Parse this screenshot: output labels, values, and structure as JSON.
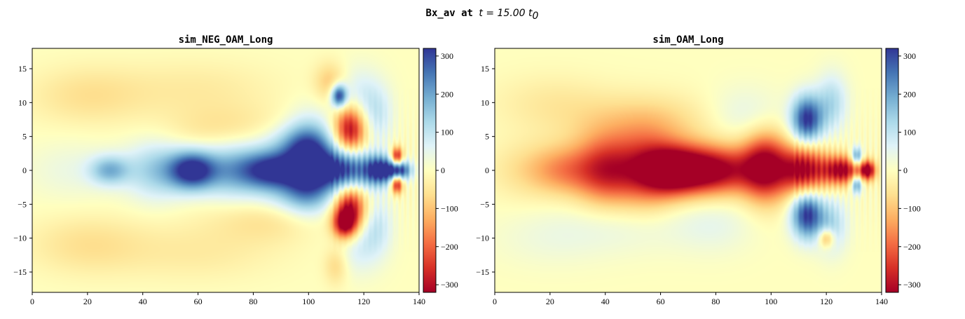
{
  "figure": {
    "title_mono": "Bx_av at ",
    "title_math": "t = 15.00 t",
    "title_sub": "0"
  },
  "chart_data": [
    {
      "type": "heatmap",
      "title": "sim_NEG_OAM_Long",
      "xlim": [
        0,
        140
      ],
      "ylim": [
        -18,
        18
      ],
      "xticks": [
        0,
        20,
        40,
        60,
        80,
        100,
        120,
        140
      ],
      "yticks": [
        -15,
        -10,
        -5,
        0,
        5,
        10,
        15
      ],
      "colormap": "RdYlBu",
      "clim": [
        -320,
        320
      ],
      "colorbar_ticks": [
        300,
        200,
        100,
        0,
        -100,
        -200,
        -300
      ],
      "features": [
        {
          "x": 15,
          "y": 0,
          "sx": 12,
          "sy": 3,
          "value": 40
        },
        {
          "x": 28,
          "y": 0,
          "sx": 5,
          "sy": 1.5,
          "value": 160
        },
        {
          "x": 45,
          "y": 0,
          "sx": 8,
          "sy": 3,
          "value": 140
        },
        {
          "x": 58,
          "y": 0,
          "sx": 6,
          "sy": 2,
          "value": 320
        },
        {
          "x": 72,
          "y": 0,
          "sx": 8,
          "sy": 3,
          "value": 160
        },
        {
          "x": 87,
          "y": 0,
          "sx": 8,
          "sy": 2,
          "value": 320
        },
        {
          "x": 100,
          "y": 1,
          "sx": 6,
          "sy": 4,
          "value": 320
        },
        {
          "x": 113,
          "y": 0,
          "sx": 7,
          "sy": 2.2,
          "value": 320
        },
        {
          "x": 126,
          "y": 0,
          "sx": 4,
          "sy": 1.5,
          "value": 320
        },
        {
          "x": 133,
          "y": 0,
          "sx": 3,
          "sy": 1,
          "value": 300
        },
        {
          "x": 115,
          "y": 6,
          "sx": 4,
          "sy": 2.5,
          "value": -320
        },
        {
          "x": 115,
          "y": -5.5,
          "sx": 4,
          "sy": 2.5,
          "value": -320
        },
        {
          "x": 111,
          "y": 11,
          "sx": 2,
          "sy": 1.2,
          "value": 320
        },
        {
          "x": 113,
          "y": -8,
          "sx": 3,
          "sy": 1.5,
          "value": -260
        },
        {
          "x": 132,
          "y": 2,
          "sx": 1.5,
          "sy": 1,
          "value": -320
        },
        {
          "x": 132,
          "y": -2,
          "sx": 1.5,
          "sy": 1,
          "value": -320
        },
        {
          "x": 118,
          "y": 11,
          "sx": 6,
          "sy": 3,
          "value": 80
        },
        {
          "x": 118,
          "y": -11,
          "sx": 6,
          "sy": 3,
          "value": 80
        },
        {
          "x": 125,
          "y": 8,
          "sx": 4,
          "sy": 3,
          "value": 80
        },
        {
          "x": 125,
          "y": -8,
          "sx": 4,
          "sy": 3,
          "value": 80
        },
        {
          "x": 108,
          "y": 13,
          "sx": 4,
          "sy": 2,
          "value": -100
        },
        {
          "x": 110,
          "y": -14,
          "sx": 3,
          "sy": 2,
          "value": -80
        },
        {
          "x": 70,
          "y": 6,
          "sx": 15,
          "sy": 2.5,
          "value": -60
        },
        {
          "x": 85,
          "y": -7,
          "sx": 15,
          "sy": 2.5,
          "value": -60
        },
        {
          "x": 20,
          "y": 11,
          "sx": 15,
          "sy": 3,
          "value": -60
        },
        {
          "x": 20,
          "y": -11,
          "sx": 15,
          "sy": 3,
          "value": -60
        },
        {
          "x": 60,
          "y": 12,
          "sx": 20,
          "sy": 3,
          "value": -40
        },
        {
          "x": 60,
          "y": -12,
          "sx": 20,
          "sy": 3,
          "value": -40
        },
        {
          "x": 95,
          "y": 4,
          "sx": 10,
          "sy": 2,
          "value": 100
        },
        {
          "x": 95,
          "y": -4,
          "sx": 10,
          "sy": 2,
          "value": 100
        }
      ]
    },
    {
      "type": "heatmap",
      "title": "sim_OAM_Long",
      "xlim": [
        0,
        140
      ],
      "ylim": [
        -18,
        18
      ],
      "xticks": [
        0,
        20,
        40,
        60,
        80,
        100,
        120,
        140
      ],
      "yticks": [
        -15,
        -10,
        -5,
        0,
        5,
        10,
        15
      ],
      "colormap": "RdYlBu",
      "clim": [
        -320,
        320
      ],
      "colorbar_ticks": [
        300,
        200,
        100,
        0,
        -100,
        -200,
        -300
      ],
      "features": [
        {
          "x": 12,
          "y": 0,
          "sx": 10,
          "sy": 3,
          "value": -60
        },
        {
          "x": 25,
          "y": 0,
          "sx": 8,
          "sy": 2.5,
          "value": -120
        },
        {
          "x": 40,
          "y": 0,
          "sx": 8,
          "sy": 3.5,
          "value": -250
        },
        {
          "x": 55,
          "y": 0,
          "sx": 8,
          "sy": 4,
          "value": -200
        },
        {
          "x": 65,
          "y": 0,
          "sx": 8,
          "sy": 2.5,
          "value": -320
        },
        {
          "x": 80,
          "y": 0,
          "sx": 10,
          "sy": 2.5,
          "value": -320
        },
        {
          "x": 98,
          "y": 0.5,
          "sx": 6,
          "sy": 3.5,
          "value": -320
        },
        {
          "x": 112,
          "y": 0,
          "sx": 6,
          "sy": 2.5,
          "value": -320
        },
        {
          "x": 126,
          "y": 0,
          "sx": 5,
          "sy": 1.5,
          "value": -320
        },
        {
          "x": 135,
          "y": 0,
          "sx": 2,
          "sy": 1,
          "value": -320
        },
        {
          "x": 113,
          "y": 7.5,
          "sx": 4,
          "sy": 2.5,
          "value": 320
        },
        {
          "x": 113,
          "y": -6.5,
          "sx": 4,
          "sy": 2.5,
          "value": 320
        },
        {
          "x": 122,
          "y": 10,
          "sx": 4,
          "sy": 3,
          "value": 120
        },
        {
          "x": 122,
          "y": -8,
          "sx": 4,
          "sy": 3,
          "value": 120
        },
        {
          "x": 131,
          "y": 2,
          "sx": 1.5,
          "sy": 1,
          "value": 250
        },
        {
          "x": 131,
          "y": -2,
          "sx": 1.5,
          "sy": 1,
          "value": 250
        },
        {
          "x": 120,
          "y": -10,
          "sx": 2,
          "sy": 1,
          "value": -180
        },
        {
          "x": 55,
          "y": 7,
          "sx": 20,
          "sy": 3,
          "value": -80
        },
        {
          "x": 50,
          "y": -8,
          "sx": 18,
          "sy": 3,
          "value": 40
        },
        {
          "x": 90,
          "y": 8,
          "sx": 10,
          "sy": 3,
          "value": 60
        },
        {
          "x": 80,
          "y": -8,
          "sx": 10,
          "sy": 3,
          "value": 40
        },
        {
          "x": 20,
          "y": 10,
          "sx": 15,
          "sy": 3,
          "value": -40
        },
        {
          "x": 20,
          "y": -10,
          "sx": 15,
          "sy": 3,
          "value": 30
        }
      ]
    }
  ]
}
